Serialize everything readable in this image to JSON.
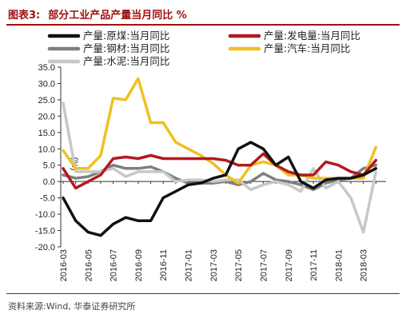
{
  "header": {
    "figure_label": "图表3:",
    "title": "部分工业产品产量当月同比 %"
  },
  "source": "资料来源:Wind, 华泰证券研究所",
  "chart_data": {
    "type": "line",
    "unit_label": "(%)",
    "ylim": [
      -20,
      35
    ],
    "yticks": [
      "35.0",
      "30.0",
      "25.0",
      "20.0",
      "15.0",
      "10.0",
      "5.0",
      "0.0",
      "-5.0",
      "-10.0",
      "-15.0",
      "-20.0"
    ],
    "ytick_values": [
      35,
      30,
      25,
      20,
      15,
      10,
      5,
      0,
      -5,
      -10,
      -15,
      -20
    ],
    "xtick_labels": [
      "2016-03",
      "2016-05",
      "2016-07",
      "2016-09",
      "2016-11",
      "2017-01",
      "2017-03",
      "2017-05",
      "2017-07",
      "2017-09",
      "2017-11",
      "2018-01",
      "2018-03"
    ],
    "x": [
      "2016-03",
      "2016-04",
      "2016-05",
      "2016-06",
      "2016-07",
      "2016-08",
      "2016-09",
      "2016-10",
      "2016-11",
      "2016-12",
      "2017-01",
      "2017-02",
      "2017-03",
      "2017-04",
      "2017-05",
      "2017-06",
      "2017-07",
      "2017-08",
      "2017-09",
      "2017-10",
      "2017-11",
      "2017-12",
      "2018-01",
      "2018-02",
      "2018-03",
      "2018-04"
    ],
    "grid": false,
    "legend_position": "top",
    "series": [
      {
        "name": "产量:原煤:当月同比",
        "color": "#111111",
        "values": [
          -5,
          -12,
          -15.5,
          -16.5,
          -13,
          -11,
          -12,
          -12,
          -5,
          -3,
          -1,
          -0.5,
          1,
          2,
          10,
          12,
          10,
          5,
          7.5,
          0,
          -2,
          0.5,
          1,
          1,
          2,
          4
        ]
      },
      {
        "name": "产量:发电量:当月同比",
        "color": "#b3191f",
        "values": [
          4,
          -2,
          0,
          2,
          7,
          7.5,
          7,
          8,
          7,
          7,
          7,
          7,
          7,
          6.5,
          5,
          5,
          8.5,
          5,
          3,
          2,
          2,
          6,
          5,
          3,
          2,
          6.5
        ]
      },
      {
        "name": "产量:钢材:当月同比",
        "color": "#7f7f7f",
        "values": [
          2,
          1,
          1.5,
          3,
          5,
          4,
          4,
          4.5,
          3,
          1,
          -0.5,
          -0.5,
          -0.5,
          0,
          -1,
          0,
          2.5,
          0.5,
          0,
          -1,
          -2.5,
          -0.5,
          0.5,
          1,
          4,
          5
        ]
      },
      {
        "name": "产量:汽车:当月同比",
        "color": "#f0c020",
        "values": [
          9.5,
          4,
          4,
          8,
          25.5,
          25,
          31.5,
          18,
          18,
          12,
          10,
          8,
          5.5,
          2,
          -0.5,
          5,
          6,
          5,
          2,
          2,
          1,
          1,
          1,
          1,
          1,
          10.5
        ]
      },
      {
        "name": "产量:水泥:当月同比",
        "color": "#c8c8c8",
        "values": [
          24,
          3,
          3,
          3,
          4,
          1.5,
          3,
          3,
          3,
          0,
          0.5,
          0.5,
          0,
          0.5,
          0.5,
          -2.5,
          -1,
          0,
          -1,
          -3,
          4,
          -2,
          0,
          -5,
          -15.5,
          3
        ]
      }
    ]
  }
}
